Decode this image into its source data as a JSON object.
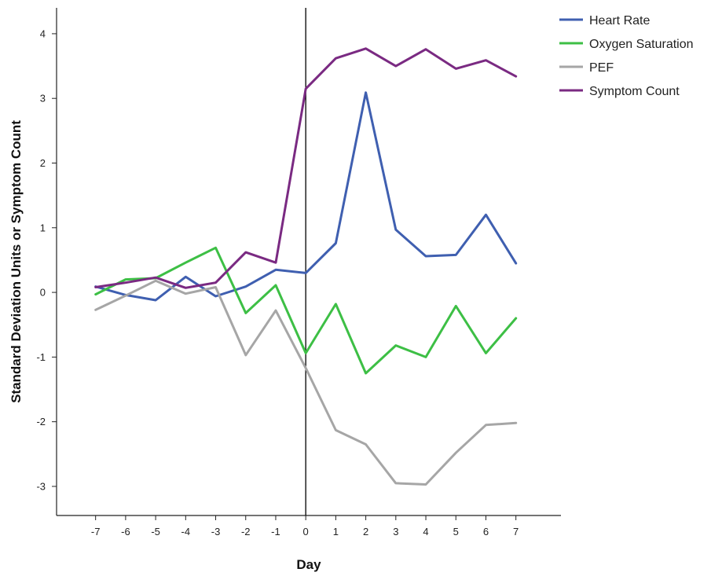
{
  "chart_data": {
    "type": "line",
    "title": "",
    "xlabel": "Day",
    "ylabel": "Standard Deviation Units or Symptom Count",
    "x": [
      -7,
      -6,
      -5,
      -4,
      -3,
      -2,
      -1,
      0,
      1,
      2,
      3,
      4,
      5,
      6,
      7
    ],
    "xlim": [
      -8.3,
      8.5
    ],
    "ylim": [
      -3.45,
      4.4
    ],
    "yticks": [
      -3,
      -2,
      -1,
      0,
      1,
      2,
      3,
      4
    ],
    "reference_line_x": 0,
    "grid": false,
    "legend_position": "top-right",
    "series": [
      {
        "name": "Heart Rate",
        "color": "#3f5fb0",
        "values": [
          0.09,
          -0.04,
          -0.12,
          0.24,
          -0.06,
          0.09,
          0.35,
          0.3,
          0.76,
          3.09,
          0.97,
          0.56,
          0.58,
          1.2,
          0.45
        ]
      },
      {
        "name": "Oxygen Saturation",
        "color": "#3dbf45",
        "values": [
          -0.03,
          0.2,
          0.22,
          0.46,
          0.69,
          -0.32,
          0.11,
          -0.94,
          -0.18,
          -1.25,
          -0.82,
          -1.0,
          -0.21,
          -0.94,
          -0.4
        ]
      },
      {
        "name": "PEF",
        "color": "#a6a6a6",
        "values": [
          -0.27,
          -0.05,
          0.18,
          -0.02,
          0.08,
          -0.97,
          -0.28,
          -1.17,
          -2.13,
          -2.35,
          -2.95,
          -2.97,
          -2.48,
          -2.05,
          -2.02
        ]
      },
      {
        "name": "Symptom Count",
        "color": "#7a2a82",
        "values": [
          0.08,
          0.15,
          0.23,
          0.07,
          0.15,
          0.62,
          0.46,
          3.15,
          3.62,
          3.77,
          3.5,
          3.76,
          3.46,
          3.59,
          3.34
        ]
      }
    ]
  }
}
